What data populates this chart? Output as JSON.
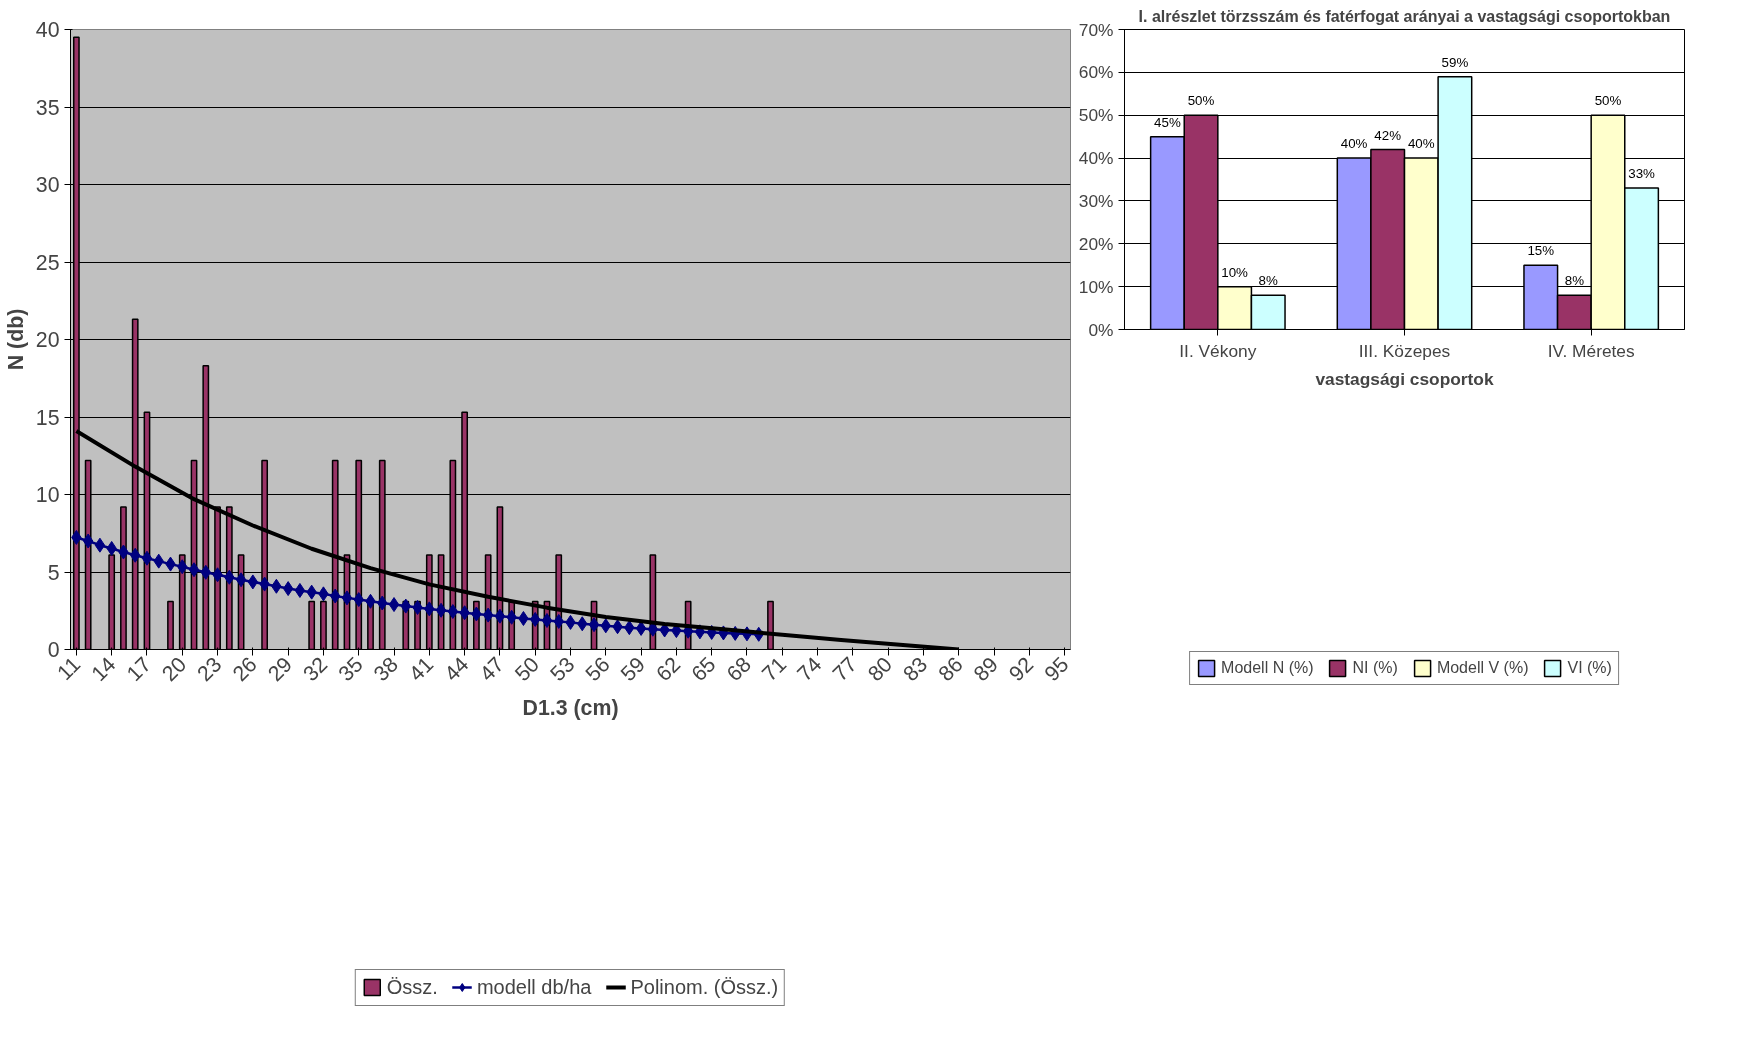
{
  "chart_data": [
    {
      "type": "bar",
      "xlabel": "D1.3 (cm)",
      "ylabel": "N (db)",
      "xlim": [
        10.5,
        95.5
      ],
      "xticks": [
        11,
        14,
        17,
        20,
        23,
        26,
        29,
        32,
        35,
        38,
        41,
        44,
        47,
        50,
        53,
        56,
        59,
        62,
        65,
        68,
        71,
        74,
        77,
        80,
        83,
        86,
        89,
        92,
        95
      ],
      "ylim": [
        0,
        40
      ],
      "yticks": [
        0,
        5,
        10,
        15,
        20,
        25,
        30,
        35,
        40
      ],
      "grid": "y",
      "legend": "bottom",
      "series": [
        {
          "name": "Össz.",
          "type": "bar",
          "color": "#993366",
          "x": [
            11,
            12,
            14,
            15,
            16,
            17,
            19,
            20,
            21,
            22,
            23,
            24,
            25,
            27,
            31,
            32,
            33,
            34,
            35,
            36,
            37,
            39,
            40,
            41,
            42,
            43,
            44,
            45,
            46,
            47,
            48,
            50,
            51,
            52,
            55,
            60,
            63,
            70
          ],
          "values": [
            39.5,
            12.2,
            6.1,
            9.2,
            21.3,
            15.3,
            3.1,
            6.1,
            12.2,
            18.3,
            9.2,
            9.2,
            6.1,
            12.2,
            3.1,
            3.1,
            12.2,
            6.1,
            12.2,
            3.1,
            12.2,
            3.1,
            3.1,
            6.1,
            6.1,
            12.2,
            15.3,
            3.1,
            6.1,
            9.2,
            3.1,
            3.1,
            3.1,
            6.1,
            3.1,
            6.1,
            3.1,
            3.1
          ]
        },
        {
          "name": "modell db/ha",
          "type": "line",
          "color": "#000080",
          "marker": "diamond",
          "x": [
            11,
            12,
            13,
            14,
            15,
            16,
            17,
            18,
            19,
            20,
            21,
            22,
            23,
            24,
            25,
            26,
            27,
            28,
            29,
            30,
            31,
            32,
            33,
            34,
            35,
            36,
            37,
            38,
            39,
            40,
            41,
            42,
            43,
            44,
            45,
            46,
            47,
            48,
            49,
            50,
            51,
            52,
            53,
            54,
            55,
            56,
            57,
            58,
            59,
            60,
            61,
            62,
            63,
            64,
            65,
            66,
            67,
            68,
            69
          ],
          "values": [
            7.23,
            7.0,
            6.73,
            6.52,
            6.29,
            6.08,
            5.89,
            5.7,
            5.51,
            5.34,
            5.15,
            4.98,
            4.82,
            4.66,
            4.5,
            4.36,
            4.22,
            4.08,
            3.93,
            3.81,
            3.7,
            3.59,
            3.45,
            3.33,
            3.22,
            3.11,
            3.0,
            2.9,
            2.8,
            2.71,
            2.62,
            2.53,
            2.45,
            2.37,
            2.29,
            2.22,
            2.15,
            2.08,
            2.0,
            1.94,
            1.87,
            1.81,
            1.75,
            1.66,
            1.6,
            1.53,
            1.47,
            1.41,
            1.36,
            1.31,
            1.26,
            1.22,
            1.18,
            1.14,
            1.1,
            1.07,
            1.04,
            1.01,
            0.98
          ]
        },
        {
          "name": "Polinom. (Össz.)",
          "type": "line",
          "color": "#000000",
          "marker": "none",
          "x": [
            11,
            16,
            21,
            26,
            31,
            36,
            41,
            46,
            51,
            56,
            61,
            66,
            71,
            76,
            81,
            86
          ],
          "values": [
            14.1,
            11.8,
            9.7,
            8.0,
            6.5,
            5.25,
            4.2,
            3.4,
            2.7,
            2.1,
            1.65,
            1.3,
            0.95,
            0.62,
            0.3,
            0.0
          ]
        }
      ]
    },
    {
      "type": "bar",
      "title": "I. alrészlet törzsszám és fatérfogat arányai a vastagsági csoportokban",
      "xlabel": "vastagsági csoportok",
      "categories": [
        "II. Vékony",
        "III. Közepes",
        "IV. Méretes"
      ],
      "ylim": [
        0,
        70
      ],
      "yticks": [
        {
          "value": 0,
          "label": "0%"
        },
        {
          "value": 10,
          "label": "10%"
        },
        {
          "value": 20,
          "label": "20%"
        },
        {
          "value": 30,
          "label": "30%"
        },
        {
          "value": 40,
          "label": "40%"
        },
        {
          "value": 50,
          "label": "50%"
        },
        {
          "value": 60,
          "label": "60%"
        },
        {
          "value": 70,
          "label": "70%"
        }
      ],
      "grid": "y",
      "legend": "bottom",
      "series": [
        {
          "name": "Modell N (%)",
          "color": "#9999ff",
          "values": [
            45,
            40,
            15
          ],
          "value_labels": [
            "45%",
            "40%",
            "15%"
          ]
        },
        {
          "name": "NI (%)",
          "color": "#993366",
          "values": [
            50,
            42,
            8
          ],
          "value_labels": [
            "50%",
            "42%",
            "8%"
          ]
        },
        {
          "name": "Modell V (%)",
          "color": "#ffffcc",
          "values": [
            10,
            40,
            50
          ],
          "value_labels": [
            "10%",
            "40%",
            "50%"
          ]
        },
        {
          "name": "VI (%)",
          "color": "#ccffff",
          "values": [
            8,
            59,
            33
          ],
          "value_labels": [
            "8%",
            "59%",
            "33%"
          ]
        }
      ]
    }
  ]
}
